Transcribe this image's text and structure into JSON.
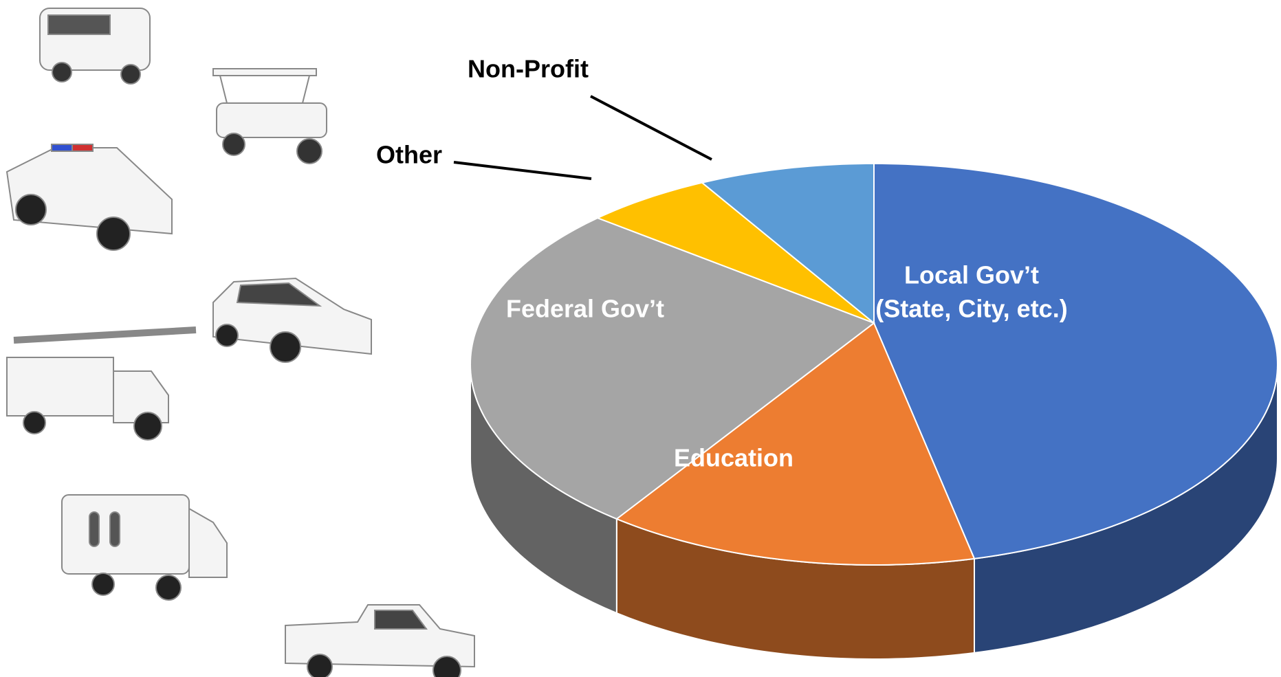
{
  "chart_data": {
    "type": "pie3d",
    "categories": [
      "Local Gov’t\n(State, City, etc.)",
      "Education",
      "Federal Gov’t",
      "Other",
      "Non-Profit"
    ],
    "values": [
      46,
      15,
      27,
      5,
      7
    ],
    "colors": [
      "#4472c4",
      "#ed7d31",
      "#a5a5a5",
      "#ffc000",
      "#5b9bd5"
    ]
  }
}
